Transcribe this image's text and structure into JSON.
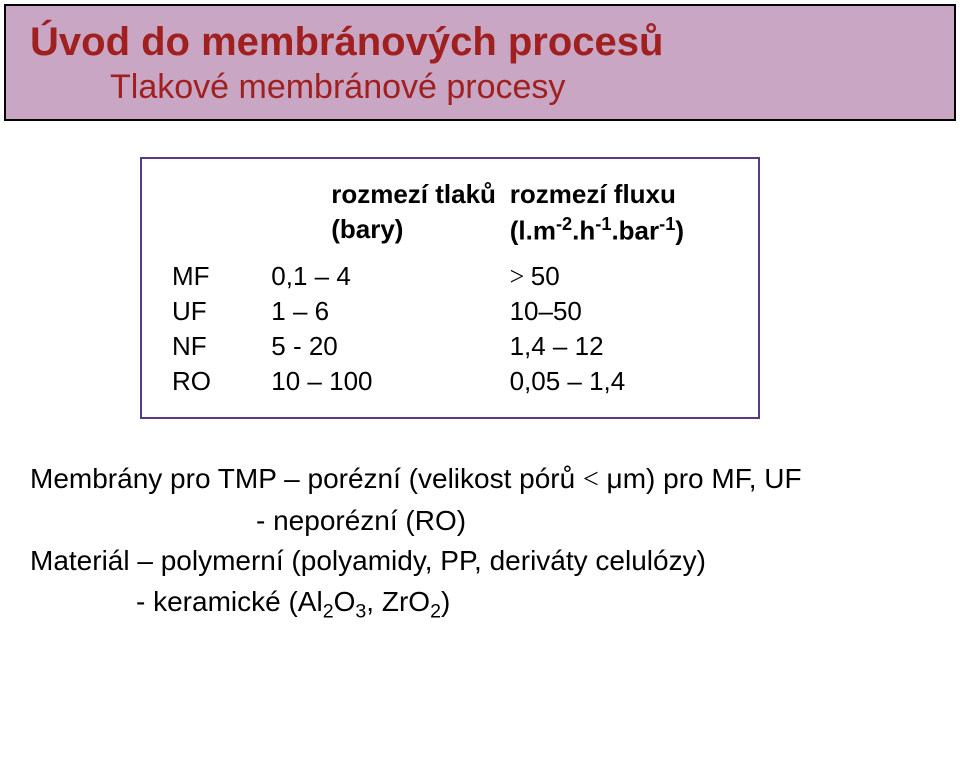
{
  "header": {
    "title": "Úvod do membránových procesů",
    "subtitle": "Tlakové membránové procesy"
  },
  "table": {
    "head": {
      "col1": "",
      "col2": "rozmezí tlaků (bary)",
      "col3_pre": "rozmezí fluxu (l.m",
      "col3_exp1": "-2",
      "col3_mid": ".h",
      "col3_exp2": "-1",
      "col3_post": ".bar",
      "col3_exp3": "-1",
      "col3_end": ")"
    },
    "rows": [
      {
        "c1": "MF",
        "c2": "0,1 – 4",
        "c3_pre": "",
        "c3_sym": "> ",
        "c3_val": "50"
      },
      {
        "c1": "UF",
        "c2": "1 –  6",
        "c3_pre": "",
        "c3_sym": "",
        "c3_val": "10–50"
      },
      {
        "c1": "NF",
        "c2": "5 -  20",
        "c3_pre": "",
        "c3_sym": "",
        "c3_val": "1,4 – 12"
      },
      {
        "c1": "RO",
        "c2": "10 – 100",
        "c3_pre": "",
        "c3_sym": "",
        "c3_val": "0,05 – 1,4"
      }
    ]
  },
  "body": {
    "line1_pre": "Membrány pro TMP – porézní (velikost pórů  ",
    "line1_lt": "<",
    "line1_mu": " μ",
    "line1_post": "m) pro MF, UF",
    "line2": "- neporézní (RO)",
    "line3": "Materiál – polymerní (polyamidy, PP, deriváty celulózy)",
    "line4_pre": "- keramické (Al",
    "line4_s1": "2",
    "line4_mid1": "O",
    "line4_s2": "3",
    "line4_mid2": ", ZrO",
    "line4_s3": "2",
    "line4_end": ")"
  },
  "colors": {
    "header_bg": "#c8a6c4",
    "title_color": "#a02020",
    "box_border": "#5b3a85",
    "text": "#000000",
    "page_bg": "#ffffff"
  },
  "fonts": {
    "title_size": 40,
    "subtitle_size": 34,
    "table_size": 26,
    "body_size": 28
  }
}
